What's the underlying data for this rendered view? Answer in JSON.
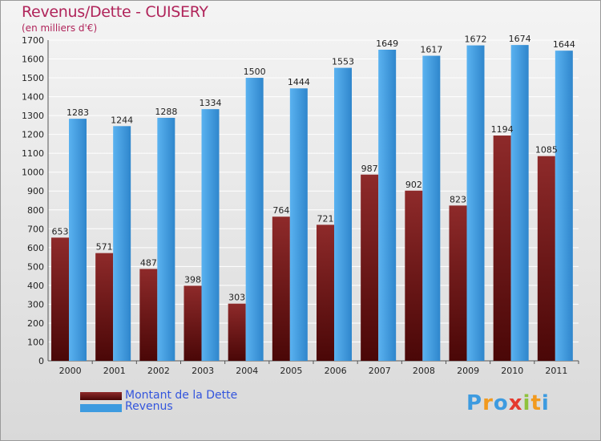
{
  "title": "Revenus/Dette - CUISERY",
  "subtitle": "(en milliers d'€)",
  "colors": {
    "dette": "#7a1c1c",
    "revenus": "#3d9be0",
    "title": "#b0245a"
  },
  "chart_data": {
    "type": "bar",
    "categories": [
      "2000",
      "2001",
      "2002",
      "2003",
      "2004",
      "2005",
      "2006",
      "2007",
      "2008",
      "2009",
      "2010",
      "2011"
    ],
    "series": [
      {
        "name": "Montant de la Dette",
        "values": [
          653,
          571,
          487,
          398,
          303,
          764,
          721,
          987,
          902,
          823,
          1194,
          1085
        ]
      },
      {
        "name": "Revenus",
        "values": [
          1283,
          1244,
          1288,
          1334,
          1500,
          1444,
          1553,
          1649,
          1617,
          1672,
          1674,
          1644
        ]
      }
    ],
    "yticks": [
      0,
      100,
      200,
      300,
      400,
      500,
      600,
      700,
      800,
      900,
      1000,
      1100,
      1200,
      1300,
      1400,
      1500,
      1600,
      1700
    ],
    "ylim": [
      0,
      1700
    ],
    "grid": true,
    "legend": "bottom-left"
  },
  "legend": {
    "dette_label": "Montant de la Dette",
    "revenus_label": "Revenus"
  },
  "logo": {
    "letters": [
      "P",
      "r",
      "o",
      "x",
      "i",
      "t",
      "i"
    ],
    "colors": [
      "#3d9be0",
      "#f29a1e",
      "#3d9be0",
      "#e53a2f",
      "#8fc23d",
      "#f29a1e",
      "#3d9be0"
    ]
  }
}
